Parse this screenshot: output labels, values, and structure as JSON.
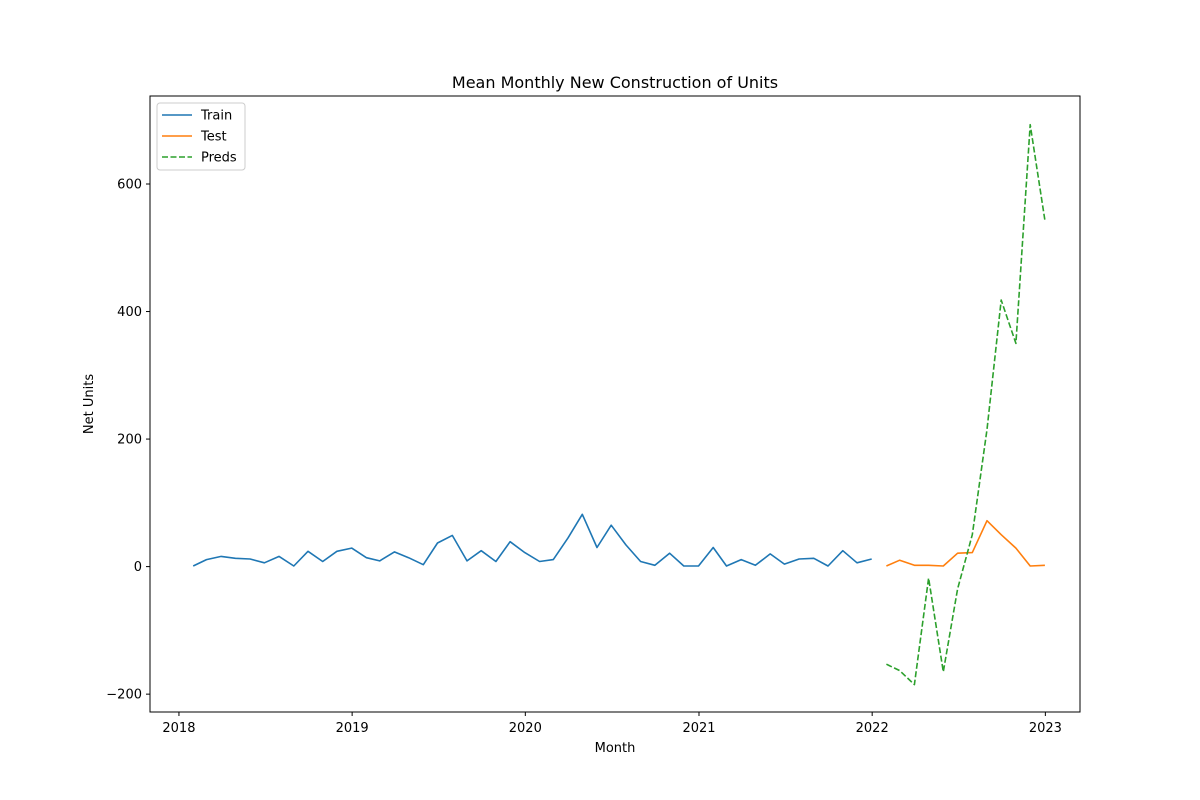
{
  "chart_data": {
    "type": "line",
    "title": "Mean Monthly New Construction of Units",
    "xlabel": "Month",
    "ylabel": "Net Units",
    "xlim": [
      "2017-11-01",
      "2023-03-15"
    ],
    "ylim": [
      -228,
      738
    ],
    "x_ticks": [
      "2018",
      "2019",
      "2020",
      "2021",
      "2022",
      "2023"
    ],
    "y_ticks": [
      -200,
      0,
      200,
      400,
      600
    ],
    "legend_position": "upper-left",
    "grid": false,
    "series": [
      {
        "name": "Train",
        "color": "#1f77b4",
        "style": "solid",
        "x": [
          "2018-01-31",
          "2018-02-28",
          "2018-03-31",
          "2018-04-30",
          "2018-05-31",
          "2018-06-30",
          "2018-07-31",
          "2018-08-31",
          "2018-09-30",
          "2018-10-31",
          "2018-11-30",
          "2018-12-31",
          "2019-01-31",
          "2019-02-28",
          "2019-03-31",
          "2019-04-30",
          "2019-05-31",
          "2019-06-30",
          "2019-07-31",
          "2019-08-31",
          "2019-09-30",
          "2019-10-31",
          "2019-11-30",
          "2019-12-31",
          "2020-01-31",
          "2020-02-29",
          "2020-03-31",
          "2020-04-30",
          "2020-05-31",
          "2020-06-30",
          "2020-07-31",
          "2020-08-31",
          "2020-09-30",
          "2020-10-31",
          "2020-11-30",
          "2020-12-31",
          "2021-01-31",
          "2021-02-28",
          "2021-03-31",
          "2021-04-30",
          "2021-05-31",
          "2021-06-30",
          "2021-07-31",
          "2021-08-31",
          "2021-09-30",
          "2021-10-31",
          "2021-11-30",
          "2021-12-31"
        ],
        "values": [
          1,
          11,
          16,
          13,
          12,
          6,
          16,
          1,
          24,
          8,
          24,
          29,
          14,
          9,
          23,
          14,
          3,
          37,
          49,
          9,
          25,
          8,
          39,
          22,
          8,
          11,
          45,
          82,
          30,
          65,
          34,
          8,
          2,
          21,
          1,
          1,
          30,
          1,
          11,
          2,
          20,
          4,
          12,
          13,
          1,
          25,
          6,
          12
        ]
      },
      {
        "name": "Test",
        "color": "#ff7f0e",
        "style": "solid",
        "x": [
          "2022-01-31",
          "2022-02-28",
          "2022-03-31",
          "2022-04-30",
          "2022-05-31",
          "2022-06-30",
          "2022-07-31",
          "2022-08-31",
          "2022-09-30",
          "2022-10-31",
          "2022-11-30",
          "2022-12-31"
        ],
        "values": [
          1,
          10,
          2,
          2,
          1,
          21,
          22,
          72,
          50,
          29,
          1,
          2
        ]
      },
      {
        "name": "Preds",
        "color": "#2ca02c",
        "style": "dashed",
        "x": [
          "2022-01-31",
          "2022-02-28",
          "2022-03-31",
          "2022-04-30",
          "2022-05-31",
          "2022-06-30",
          "2022-07-31",
          "2022-08-31",
          "2022-09-30",
          "2022-10-31",
          "2022-11-30",
          "2022-12-31"
        ],
        "values": [
          -153,
          -163,
          -185,
          -18,
          -165,
          -35,
          50,
          215,
          418,
          350,
          693,
          543
        ]
      }
    ]
  }
}
